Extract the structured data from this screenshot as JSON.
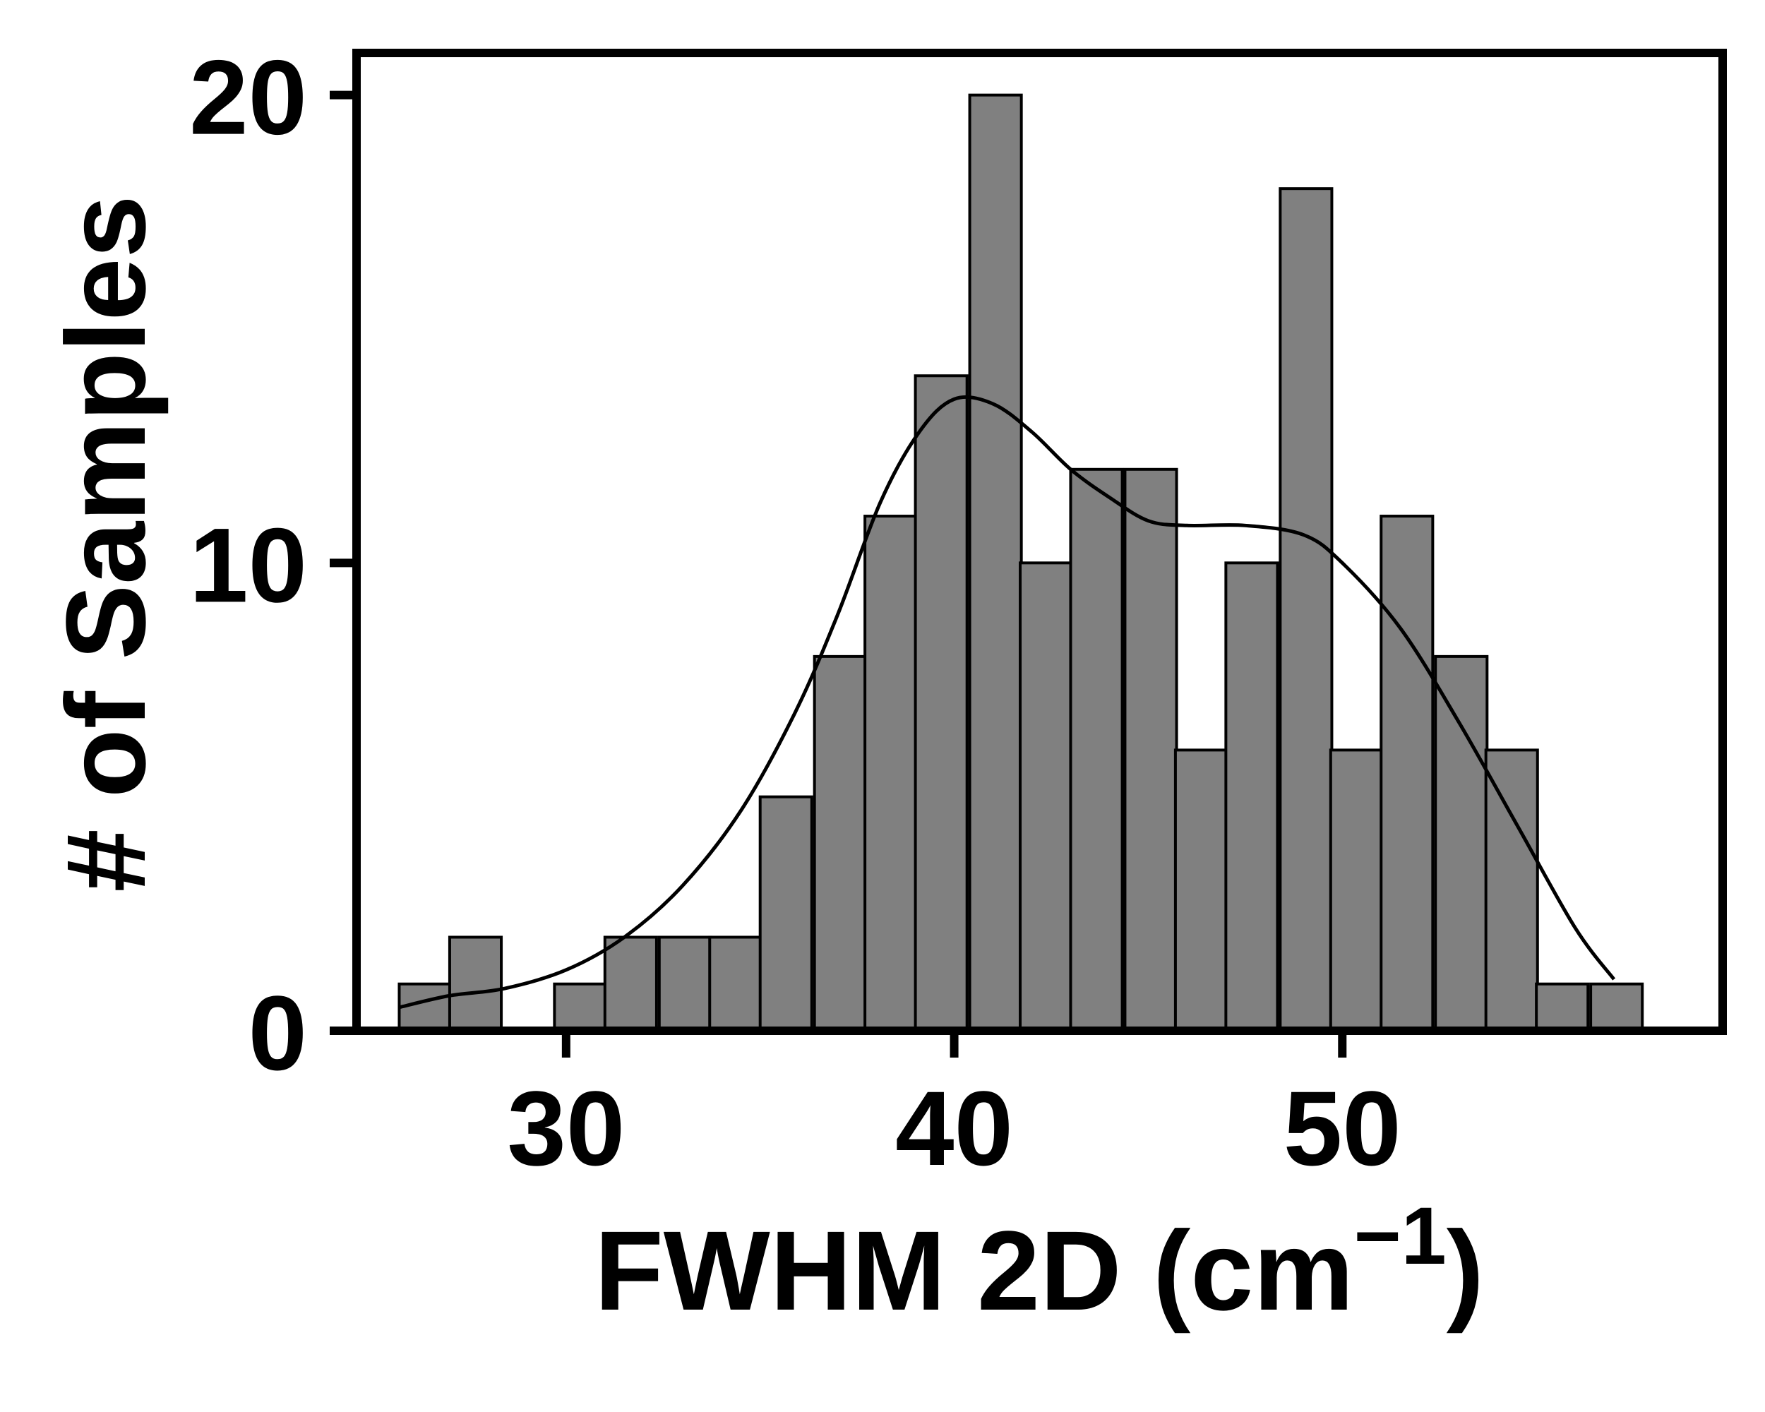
{
  "chart_data": {
    "type": "bar",
    "subtype": "histogram-with-density-curve",
    "title": "",
    "xlabel": "FWHM 2D (cm",
    "xlabel_superscript": "−1",
    "xlabel_suffix": ")",
    "ylabel": "# of Samples",
    "xlim": [
      24.6,
      59.8
    ],
    "ylim": [
      0,
      20.9
    ],
    "xticks": [
      30,
      40,
      50
    ],
    "xtick_labels": [
      "30",
      "40",
      "50"
    ],
    "yticks": [
      0,
      10,
      20
    ],
    "ytick_labels": [
      "0",
      "10",
      "20"
    ],
    "grid": false,
    "legend": "none",
    "bin_width": 1.33,
    "bins": [
      {
        "start": 25.7,
        "count": 1
      },
      {
        "start": 27.0,
        "count": 2
      },
      {
        "start": 28.4,
        "count": 0
      },
      {
        "start": 29.7,
        "count": 1
      },
      {
        "start": 31.0,
        "count": 2
      },
      {
        "start": 32.4,
        "count": 2
      },
      {
        "start": 33.7,
        "count": 2
      },
      {
        "start": 35.0,
        "count": 5
      },
      {
        "start": 36.4,
        "count": 8
      },
      {
        "start": 37.7,
        "count": 11
      },
      {
        "start": 39.0,
        "count": 14
      },
      {
        "start": 40.4,
        "count": 20
      },
      {
        "start": 41.7,
        "count": 10
      },
      {
        "start": 43.0,
        "count": 12
      },
      {
        "start": 44.4,
        "count": 12
      },
      {
        "start": 45.7,
        "count": 6
      },
      {
        "start": 47.0,
        "count": 10
      },
      {
        "start": 48.4,
        "count": 18
      },
      {
        "start": 49.7,
        "count": 6
      },
      {
        "start": 51.0,
        "count": 11
      },
      {
        "start": 52.4,
        "count": 8
      },
      {
        "start": 53.7,
        "count": 6
      },
      {
        "start": 55.0,
        "count": 1
      },
      {
        "start": 56.4,
        "count": 1
      }
    ],
    "density_curve": {
      "x": [
        25.7,
        27.0,
        28.4,
        30.0,
        31.5,
        33.0,
        34.5,
        35.9,
        37.0,
        38.1,
        39.1,
        40.0,
        41.0,
        42.0,
        43.0,
        44.0,
        45.0,
        46.0,
        47.5,
        49.0,
        50.0,
        51.5,
        53.0,
        54.5,
        56.0,
        57.0
      ],
      "y": [
        0.5,
        0.75,
        0.9,
        1.3,
        2.0,
        3.1,
        4.7,
        6.8,
        8.9,
        11.3,
        12.8,
        13.5,
        13.4,
        12.8,
        12.0,
        11.4,
        10.9,
        10.8,
        10.8,
        10.6,
        10.0,
        8.6,
        6.6,
        4.4,
        2.2,
        1.1
      ]
    },
    "colors": {
      "bar_fill": "#808080",
      "bar_edge": "#000000",
      "curve": "#000000",
      "axes": "#000000"
    }
  }
}
